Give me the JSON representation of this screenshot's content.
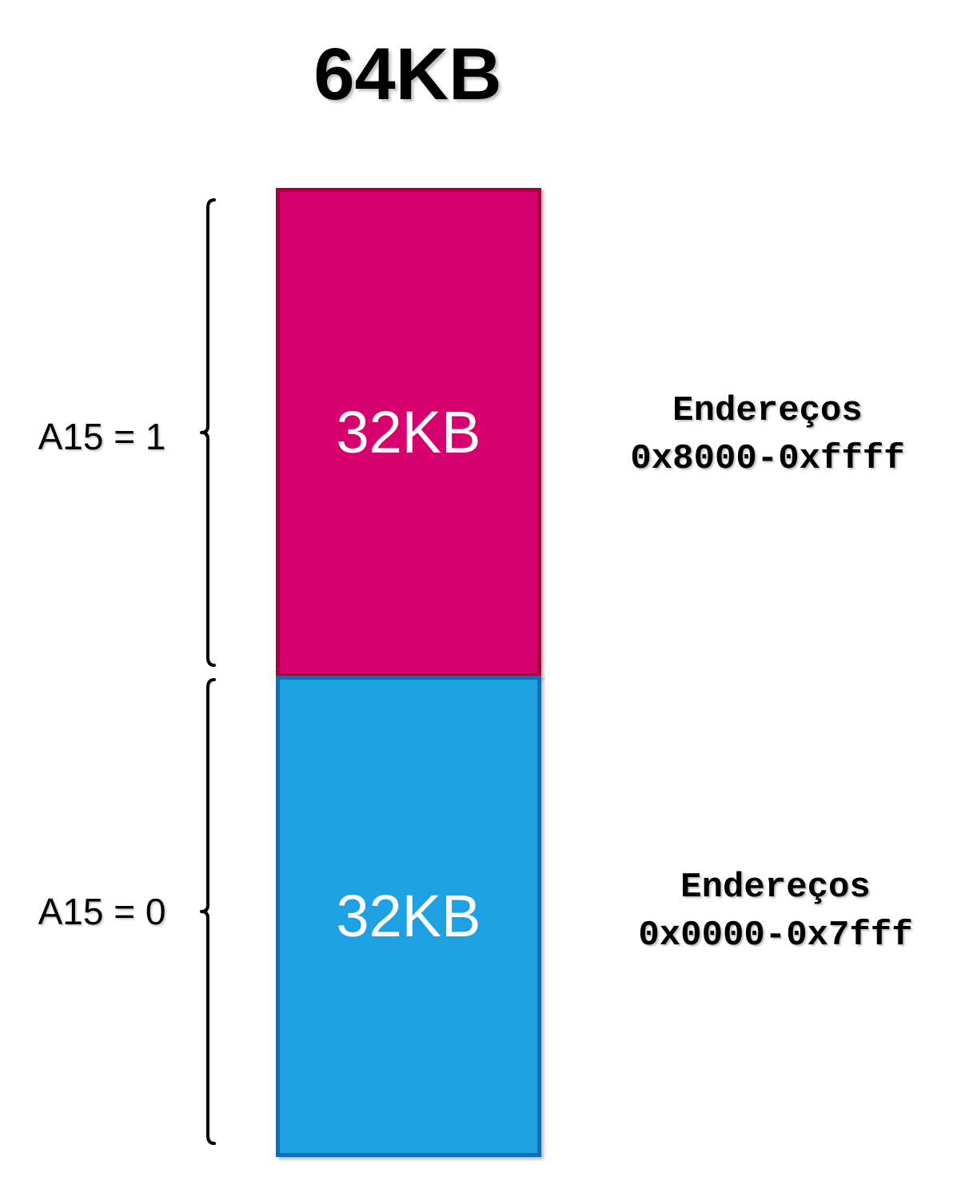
{
  "title": "64KB",
  "regions": [
    {
      "size_label": "32KB",
      "condition": "A15 = 1",
      "address_caption": "Endereços",
      "address_range": "0x8000-0xffff",
      "fill_color": "#d6006e",
      "border_color": "#a8003f"
    },
    {
      "size_label": "32KB",
      "condition": "A15 = 0",
      "address_caption": "Endereços",
      "address_range": "0x0000-0x7fff",
      "fill_color": "#1ea1e2",
      "border_color": "#0a70b5"
    }
  ]
}
